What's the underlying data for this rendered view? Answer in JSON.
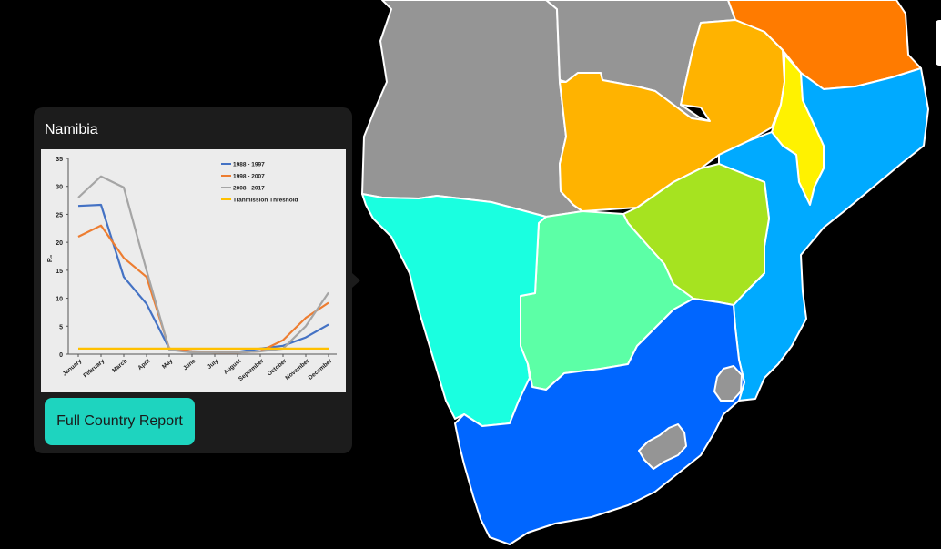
{
  "popup": {
    "title": "Namibia",
    "button_label": "Full Country Report"
  },
  "map": {
    "region_colors": {
      "namibia": "#1affe0",
      "botswana": "#5cffa6",
      "zimbabwe": "#a6e320",
      "zambia": "#ffb300",
      "mozambique": "#00aaff",
      "south_africa": "#0066ff",
      "malawi": "#fff200",
      "tanzania": "#ff7b00",
      "angola": "#959595",
      "drc": "#959595",
      "lesotho": "#959595",
      "eswatini": "#959595"
    }
  },
  "chart_data": {
    "type": "line",
    "ylabel": "R₀",
    "ylim": [
      0,
      35
    ],
    "yticks": [
      0,
      5,
      10,
      15,
      20,
      25,
      30,
      35
    ],
    "categories": [
      "January",
      "February",
      "March",
      "April",
      "May",
      "June",
      "July",
      "August",
      "September",
      "October",
      "November",
      "December"
    ],
    "legend_position": "top-right",
    "series": [
      {
        "name": "1988 - 1997",
        "color": "#4472c4",
        "values": [
          26.5,
          26.7,
          13.8,
          9,
          1,
          0.5,
          0.4,
          0.4,
          1,
          1.5,
          3,
          5.3
        ]
      },
      {
        "name": "1998 - 2007",
        "color": "#ed7d31",
        "values": [
          21,
          23,
          17.2,
          13.8,
          1,
          0.5,
          0.3,
          0.3,
          0.5,
          2.5,
          6.5,
          9.2
        ]
      },
      {
        "name": "2008 - 2017",
        "color": "#a5a5a5",
        "values": [
          28,
          31.8,
          29.8,
          15,
          0.8,
          0.3,
          0.3,
          0.3,
          0.5,
          1,
          5,
          11
        ]
      },
      {
        "name": "Tranmission Threshold",
        "color": "#ffc000",
        "values": [
          1,
          1,
          1,
          1,
          1,
          1,
          1,
          1,
          1,
          1,
          1,
          1
        ]
      }
    ]
  }
}
